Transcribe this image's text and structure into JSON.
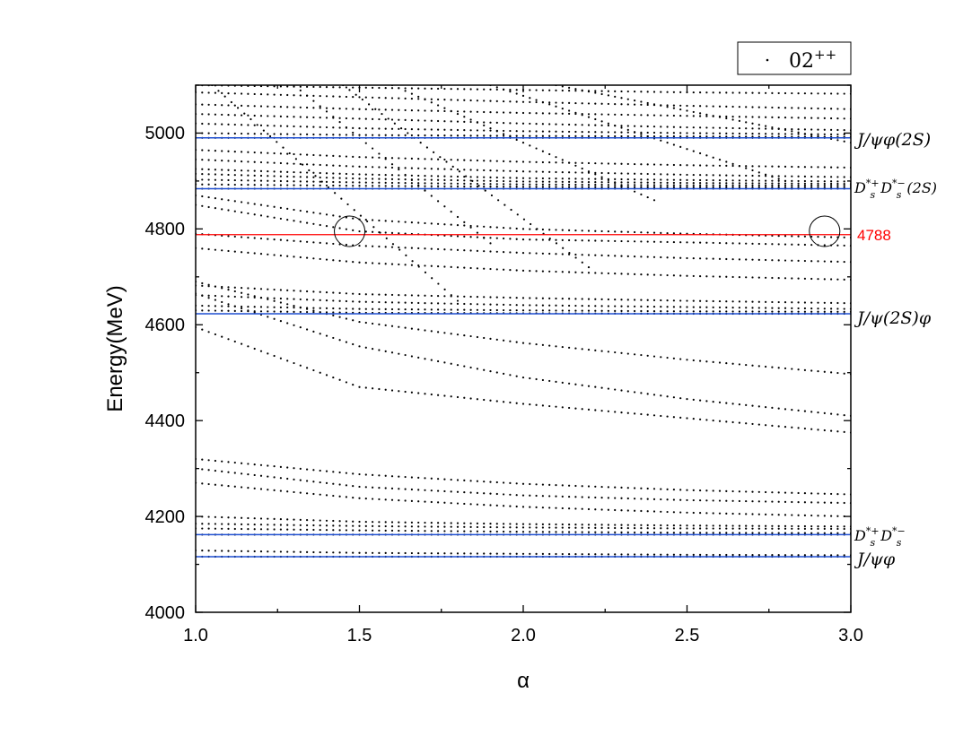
{
  "chart_data": {
    "type": "scatter",
    "xlabel": "α",
    "ylabel": "Energy(MeV)",
    "xlim": [
      1.0,
      3.0
    ],
    "ylim": [
      4000,
      5100
    ],
    "x_ticks": [
      "1.0",
      "1.5",
      "2.0",
      "2.5",
      "3.0"
    ],
    "y_ticks": [
      "4000",
      "4200",
      "4400",
      "4600",
      "4800",
      "5000"
    ],
    "legend": {
      "label": "02",
      "superscript": "++",
      "position": "top-right (outside plot)"
    },
    "colors": {
      "threshold": "#1f4fd1",
      "marker": "#ff0000",
      "dots": "#000000"
    },
    "thresholds": [
      {
        "name": "J/ψφ(2S)",
        "value": 4990
      },
      {
        "name": "Ds*+Ds*-(2S)",
        "value": 4884
      },
      {
        "name": "J/ψ(2S)φ",
        "value": 4623
      },
      {
        "name": "Ds*+Ds*-",
        "value": 4162
      },
      {
        "name": "J/ψφ",
        "value": 4116
      }
    ],
    "marker_line": {
      "value": 4788,
      "label": "4788"
    },
    "circles": [
      {
        "x": 1.47,
        "y": 4795
      },
      {
        "x": 2.92,
        "y": 4795
      }
    ],
    "series_x": [
      1.0,
      1.5,
      2.0,
      2.5,
      3.0
    ],
    "series": [
      {
        "values": [
          4116,
          4116,
          4116,
          4116,
          4116
        ]
      },
      {
        "values": [
          4129,
          4124,
          4122,
          4120,
          4119
        ]
      },
      {
        "values": [
          4162,
          4162,
          4162,
          4162,
          4162
        ]
      },
      {
        "values": [
          4175,
          4171,
          4168,
          4166,
          4165
        ]
      },
      {
        "values": [
          4185,
          4180,
          4177,
          4175,
          4174
        ]
      },
      {
        "values": [
          4200,
          4189,
          4184,
          4181,
          4179
        ]
      },
      {
        "values": [
          4270,
          4238,
          4220,
          4208,
          4200
        ]
      },
      {
        "values": [
          4300,
          4262,
          4244,
          4234,
          4228
        ]
      },
      {
        "values": [
          4320,
          4288,
          4268,
          4255,
          4246
        ]
      },
      {
        "values": [
          4595,
          4470,
          4435,
          4405,
          4375
        ]
      },
      {
        "values": [
          4665,
          4555,
          4490,
          4445,
          4410
        ]
      },
      {
        "values": [
          4690,
          4606,
          4562,
          4527,
          4497
        ]
      },
      {
        "values": [
          4630,
          4625,
          4624,
          4623,
          4623
        ]
      },
      {
        "values": [
          4640,
          4633,
          4630,
          4628,
          4627
        ]
      },
      {
        "values": [
          4662,
          4648,
          4641,
          4637,
          4633
        ]
      },
      {
        "values": [
          4682,
          4664,
          4656,
          4650,
          4645
        ]
      },
      {
        "values": [
          4760,
          4730,
          4713,
          4702,
          4694
        ]
      },
      {
        "values": [
          4790,
          4765,
          4750,
          4739,
          4731
        ]
      },
      {
        "values": [
          4850,
          4795,
          4778,
          4772,
          4765
        ]
      },
      {
        "values": [
          4870,
          4820,
          4800,
          4790,
          4782
        ]
      },
      {
        "values": [
          4884,
          4884,
          4884,
          4884,
          4884
        ]
      },
      {
        "values": [
          4893,
          4890,
          4888,
          4887,
          4886
        ]
      },
      {
        "values": [
          4903,
          4897,
          4893,
          4891,
          4890
        ]
      },
      {
        "values": [
          4915,
          4905,
          4899,
          4896,
          4894
        ]
      },
      {
        "values": [
          4925,
          4914,
          4906,
          4902,
          4899
        ]
      },
      {
        "values": [
          4945,
          4930,
          4920,
          4913,
          4908
        ]
      },
      {
        "values": [
          4965,
          4950,
          4940,
          4933,
          4928
        ]
      },
      {
        "values": [
          4990,
          4990,
          4990,
          4990,
          4990
        ]
      },
      {
        "values": [
          5000,
          4996,
          4994,
          4993,
          4992
        ]
      },
      {
        "values": [
          5020,
          5010,
          5004,
          5000,
          4997
        ]
      },
      {
        "values": [
          5040,
          5030,
          5020,
          5012,
          5006
        ]
      },
      {
        "values": [
          5060,
          5050,
          5042,
          5036,
          5030
        ]
      },
      {
        "values": [
          5085,
          5075,
          5065,
          5057,
          5050
        ]
      },
      {
        "values": [
          5100,
          5095,
          5090,
          5085,
          5082
        ]
      }
    ],
    "diagonal_series": [
      {
        "x": [
          1.05,
          1.8
        ],
        "y": [
          5100,
          4650
        ]
      },
      {
        "x": [
          1.3,
          1.9
        ],
        "y": [
          5100,
          4770
        ]
      },
      {
        "x": [
          1.45,
          2.2
        ],
        "y": [
          5100,
          4720
        ]
      },
      {
        "x": [
          1.6,
          2.4
        ],
        "y": [
          5100,
          4860
        ]
      },
      {
        "x": [
          1.9,
          2.8
        ],
        "y": [
          5100,
          4900
        ]
      },
      {
        "x": [
          2.1,
          3.0
        ],
        "y": [
          5100,
          4980
        ]
      }
    ]
  }
}
